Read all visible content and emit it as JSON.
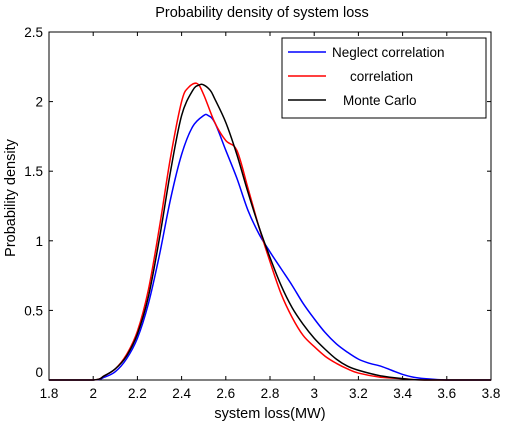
{
  "chart_data": {
    "type": "line",
    "title": "Probability density of system loss",
    "xlabel": "system loss(MW)",
    "ylabel": "Probability density",
    "xlim": [
      1.8,
      3.8
    ],
    "ylim": [
      0,
      2.5
    ],
    "xticks": [
      "1.8",
      "2",
      "2.2",
      "2.4",
      "2.6",
      "2.8",
      "3",
      "3.2",
      "3.4",
      "3.6",
      "3.8"
    ],
    "yticks": [
      "0",
      "0.5",
      "1",
      "1.5",
      "2",
      "2.5"
    ],
    "grid": false,
    "legend_position": "top-right",
    "series": [
      {
        "name": "Neglect correlation",
        "color": "#0000ff",
        "x": [
          1.8,
          2.0,
          2.05,
          2.1,
          2.15,
          2.2,
          2.25,
          2.3,
          2.35,
          2.4,
          2.45,
          2.5,
          2.52,
          2.55,
          2.6,
          2.65,
          2.7,
          2.75,
          2.8,
          2.85,
          2.9,
          2.95,
          3.0,
          3.05,
          3.1,
          3.15,
          3.2,
          3.25,
          3.3,
          3.35,
          3.4,
          3.45,
          3.5,
          3.6,
          3.8
        ],
        "y": [
          0,
          0,
          0.02,
          0.06,
          0.15,
          0.3,
          0.55,
          0.9,
          1.3,
          1.62,
          1.82,
          1.9,
          1.9,
          1.85,
          1.65,
          1.45,
          1.22,
          1.05,
          0.92,
          0.8,
          0.68,
          0.55,
          0.44,
          0.34,
          0.26,
          0.2,
          0.15,
          0.12,
          0.1,
          0.07,
          0.04,
          0.02,
          0.01,
          0,
          0
        ]
      },
      {
        "name": "correlation",
        "color": "#ff0000",
        "x": [
          1.8,
          2.0,
          2.05,
          2.1,
          2.15,
          2.2,
          2.25,
          2.3,
          2.35,
          2.4,
          2.43,
          2.47,
          2.5,
          2.55,
          2.6,
          2.65,
          2.7,
          2.75,
          2.8,
          2.85,
          2.9,
          2.95,
          3.0,
          3.05,
          3.1,
          3.15,
          3.2,
          3.3,
          3.4,
          3.5,
          3.8
        ],
        "y": [
          0,
          0,
          0.03,
          0.08,
          0.18,
          0.35,
          0.65,
          1.1,
          1.6,
          2.0,
          2.1,
          2.13,
          2.05,
          1.85,
          1.72,
          1.65,
          1.38,
          1.1,
          0.85,
          0.62,
          0.45,
          0.32,
          0.24,
          0.17,
          0.12,
          0.08,
          0.05,
          0.02,
          0.01,
          0,
          0
        ]
      },
      {
        "name": "Monte Carlo",
        "color": "#000000",
        "x": [
          1.8,
          2.0,
          2.05,
          2.1,
          2.15,
          2.2,
          2.25,
          2.3,
          2.35,
          2.4,
          2.45,
          2.48,
          2.5,
          2.53,
          2.55,
          2.6,
          2.65,
          2.7,
          2.75,
          2.8,
          2.85,
          2.9,
          2.95,
          3.0,
          3.05,
          3.1,
          3.15,
          3.2,
          3.3,
          3.4,
          3.5,
          3.8
        ],
        "y": [
          0,
          0,
          0.03,
          0.08,
          0.17,
          0.33,
          0.6,
          1.02,
          1.5,
          1.9,
          2.08,
          2.12,
          2.12,
          2.08,
          2.02,
          1.85,
          1.62,
          1.35,
          1.1,
          0.88,
          0.68,
          0.52,
          0.4,
          0.3,
          0.22,
          0.15,
          0.1,
          0.07,
          0.03,
          0.01,
          0,
          0
        ]
      }
    ]
  }
}
